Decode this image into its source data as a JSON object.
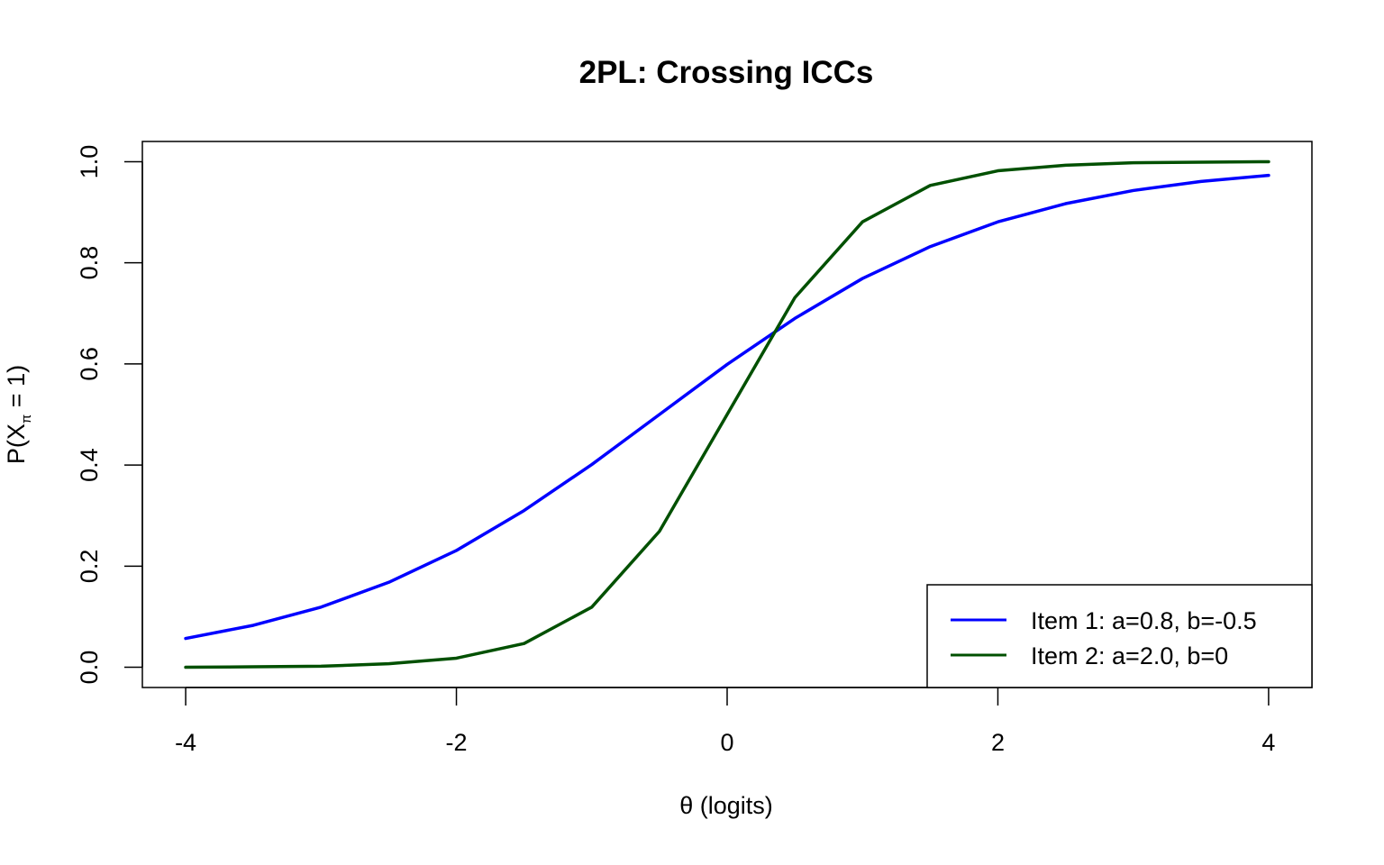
{
  "chart_data": {
    "type": "line",
    "title": "2PL: Crossing ICCs",
    "xlabel": "θ (logits)",
    "ylabel": {
      "prefix": "P(X",
      "subscript": "π",
      "suffix": " = 1)"
    },
    "xlim": [
      -4.32,
      4.32
    ],
    "ylim": [
      -0.04,
      1.04
    ],
    "x_ticks": [
      -4,
      -2,
      0,
      2,
      4
    ],
    "x_tick_labels": [
      "-4",
      "-2",
      "0",
      "2",
      "4"
    ],
    "y_ticks": [
      0.0,
      0.2,
      0.4,
      0.6,
      0.8,
      1.0
    ],
    "y_tick_labels": [
      "0.0",
      "0.2",
      "0.4",
      "0.6",
      "0.8",
      "1.0"
    ],
    "legend_position": "bottom-right",
    "series": [
      {
        "name": "Item 1: a=0.8, b=-0.5",
        "color": "#0000FF",
        "x": [
          -4,
          -3.5,
          -3,
          -2.5,
          -2,
          -1.5,
          -1,
          -0.5,
          0,
          0.5,
          1,
          1.5,
          2,
          2.5,
          3,
          3.5,
          4
        ],
        "y": [
          0.057,
          0.083,
          0.119,
          0.168,
          0.231,
          0.31,
          0.401,
          0.5,
          0.599,
          0.69,
          0.769,
          0.832,
          0.881,
          0.917,
          0.943,
          0.961,
          0.973
        ]
      },
      {
        "name": "Item 2: a=2.0, b=0",
        "color": "#005000",
        "x": [
          -4,
          -3.5,
          -3,
          -2.5,
          -2,
          -1.5,
          -1,
          -0.5,
          0,
          0.5,
          1,
          1.5,
          2,
          2.5,
          3,
          3.5,
          4
        ],
        "y": [
          0.0,
          0.001,
          0.002,
          0.007,
          0.018,
          0.047,
          0.119,
          0.269,
          0.5,
          0.731,
          0.881,
          0.953,
          0.982,
          0.993,
          0.998,
          0.999,
          1.0
        ]
      }
    ]
  }
}
